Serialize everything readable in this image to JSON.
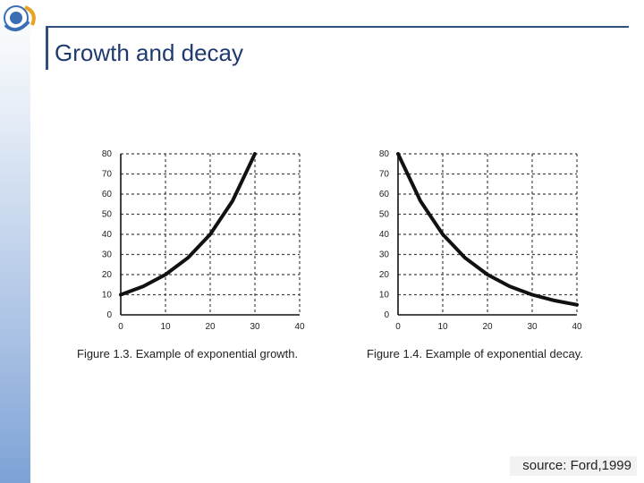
{
  "slide": {
    "title": "Growth and decay",
    "source": "source: Ford,1999"
  },
  "colors": {
    "accent": "#2f4f7f",
    "title": "#1f3a6e"
  },
  "chart_data": [
    {
      "type": "line",
      "title": "",
      "caption": "Figure 1.3. Example of exponential growth.",
      "xlabel": "",
      "ylabel": "",
      "xlim": [
        0,
        40
      ],
      "ylim": [
        0,
        80
      ],
      "xticks": [
        0,
        10,
        20,
        30,
        40
      ],
      "yticks": [
        0,
        10,
        20,
        30,
        40,
        50,
        60,
        70,
        80
      ],
      "grid": true,
      "series": [
        {
          "x": [
            0,
            5,
            10,
            15,
            20,
            25,
            30
          ],
          "y": [
            10,
            14.1,
            20,
            28.3,
            40,
            56.6,
            80
          ]
        }
      ]
    },
    {
      "type": "line",
      "title": "",
      "caption": "Figure 1.4. Example of exponential decay.",
      "xlabel": "",
      "ylabel": "",
      "xlim": [
        0,
        40
      ],
      "ylim": [
        0,
        80
      ],
      "xticks": [
        0,
        10,
        20,
        30,
        40
      ],
      "yticks": [
        0,
        10,
        20,
        30,
        40,
        50,
        60,
        70,
        80
      ],
      "grid": true,
      "series": [
        {
          "x": [
            0,
            5,
            10,
            15,
            20,
            25,
            30,
            35,
            40
          ],
          "y": [
            80,
            56.6,
            40,
            28.3,
            20,
            14.1,
            10,
            7.1,
            5
          ]
        }
      ]
    }
  ]
}
